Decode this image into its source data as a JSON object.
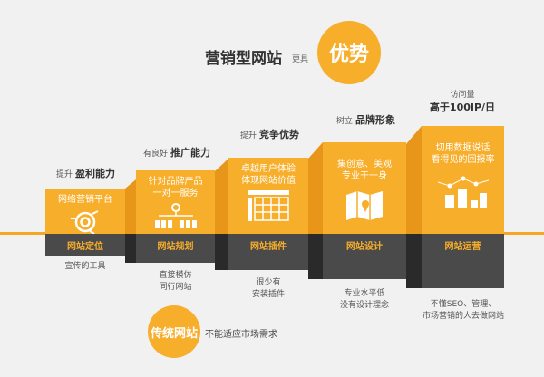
{
  "header": {
    "title": "营销型网站",
    "connector": "更具",
    "badge": "优势"
  },
  "steps": [
    {
      "caption_prefix": "提升",
      "caption": "盈利能力",
      "desc": "网络营销平台",
      "label": "网站定位",
      "note": "宣传的工具",
      "icon": "target-icon"
    },
    {
      "caption_prefix": "有良好",
      "caption": "推广能力",
      "desc": "针对品牌产品\n一对一服务",
      "label": "网站规划",
      "note": "直接模仿\n同行网站",
      "icon": "sitemap-icon"
    },
    {
      "caption_prefix": "提升",
      "caption": "竞争优势",
      "desc": "卓越用户体验\n体现网站价值",
      "label": "网站插件",
      "note": "很少有\n安装插件",
      "icon": "grid-icon"
    },
    {
      "caption_prefix": "树立",
      "caption": "品牌形象",
      "desc": "集创意、美观\n专业于一身",
      "label": "网站设计",
      "note": "专业水平低\n没有设计理念",
      "icon": "map-icon"
    },
    {
      "caption_prefix": "访问量",
      "caption": "高于100IP/日",
      "desc": "切用数据说话\n看得见的回报率",
      "label": "网站运营",
      "note": "不懂SEO、管理、\n市场营销的人去做网站",
      "icon": "chart-icon"
    }
  ],
  "footer": {
    "badge": "传统网站",
    "text": "不能适应市场需求"
  },
  "colors": {
    "accent": "#f7ae2b",
    "dark": "#4a4a4a",
    "background": "#f1f1f1"
  }
}
